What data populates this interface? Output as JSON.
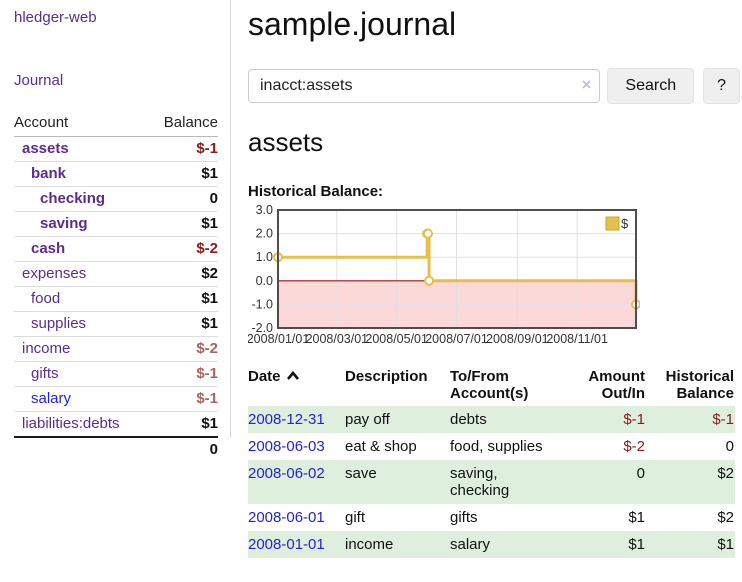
{
  "app": {
    "brand": "hledger-web",
    "nav_journal": "Journal"
  },
  "sidebar": {
    "headers": {
      "account": "Account",
      "balance": "Balance"
    },
    "accounts": [
      {
        "name": "assets",
        "balance": "$-1"
      },
      {
        "name": "bank",
        "balance": "$1"
      },
      {
        "name": "checking",
        "balance": "0"
      },
      {
        "name": "saving",
        "balance": "$1"
      },
      {
        "name": "cash",
        "balance": "$-2"
      },
      {
        "name": "expenses",
        "balance": "$2"
      },
      {
        "name": "food",
        "balance": "$1"
      },
      {
        "name": "supplies",
        "balance": "$1"
      },
      {
        "name": "income",
        "balance": "$-2"
      },
      {
        "name": "gifts",
        "balance": "$-1"
      },
      {
        "name": "salary",
        "balance": "$-1"
      },
      {
        "name": "liabilities:debts",
        "balance": "$1"
      }
    ],
    "total": "0"
  },
  "header": {
    "title": "sample.journal"
  },
  "search": {
    "query": "inacct:assets",
    "clear_icon": "×",
    "button_label": "Search",
    "help_label": "?"
  },
  "account_page": {
    "title": "assets",
    "chart_label": "Historical Balance:"
  },
  "chart_data": {
    "type": "line",
    "title": "Historical Balance:",
    "series": [
      {
        "name": "$",
        "color": "#E7BF4D",
        "step": true,
        "points": [
          [
            "2008-01-01",
            1
          ],
          [
            "2008-06-01",
            2
          ],
          [
            "2008-06-02",
            2
          ],
          [
            "2008-06-03",
            0
          ],
          [
            "2008-12-31",
            -1
          ]
        ]
      }
    ],
    "xlim": [
      "2008-01-01",
      "2008-12-31"
    ],
    "ylim": [
      -2,
      3
    ],
    "x_ticks": [
      "2008/01/01",
      "2008/03/01",
      "2008/05/01",
      "2008/07/01",
      "2008/09/01",
      "2008/11/01"
    ],
    "y_ticks": [
      3.0,
      2.0,
      1.0,
      0.0,
      -1.0,
      -2.0
    ],
    "grid": true,
    "legend": {
      "label": "$",
      "position": "top-right"
    },
    "colors": {
      "negative_region": "#FBD9D9",
      "zero_line": "#A01010",
      "grid": "#E0E0E0",
      "border": "#4D4D4D"
    }
  },
  "register": {
    "headers": {
      "date": "Date",
      "description": "Description",
      "accounts": "To/From Account(s)",
      "amount": "Amount Out/In",
      "balance": "Historical Balance"
    },
    "rows": [
      {
        "date": "2008-12-31",
        "description": "pay off",
        "accounts": "debts",
        "amount": "$-1",
        "balance": "$-1"
      },
      {
        "date": "2008-06-03",
        "description": "eat & shop",
        "accounts": "food, supplies",
        "amount": "$-2",
        "balance": "0"
      },
      {
        "date": "2008-06-02",
        "description": "save",
        "accounts": "saving, checking",
        "amount": "0",
        "balance": "$2"
      },
      {
        "date": "2008-06-01",
        "description": "gift",
        "accounts": "gifts",
        "amount": "$1",
        "balance": "$2"
      },
      {
        "date": "2008-01-01",
        "description": "income",
        "accounts": "salary",
        "amount": "$1",
        "balance": "$1"
      }
    ]
  }
}
